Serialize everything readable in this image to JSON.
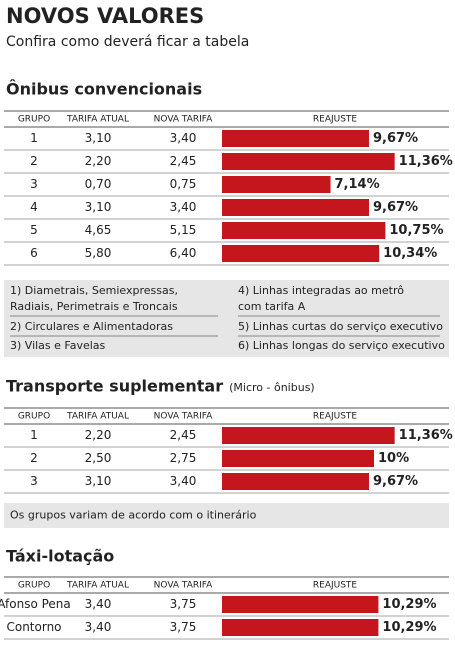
{
  "header": {
    "title": "NOVOS VALORES",
    "subtitle": "Confira como deverá ficar a tabela"
  },
  "sections": [
    {
      "title": "Ônibus convencionais",
      "columns": [
        "GRUPO",
        "TARIFA ATUAL",
        "NOVA TARIFA",
        "REAJUSTE"
      ],
      "rows": [
        [
          "1",
          "3,10",
          "3,40"
        ],
        [
          "2",
          "2,20",
          "2,45"
        ],
        [
          "3",
          "0,70",
          "0,75"
        ],
        [
          "4",
          "3,10",
          "3,40"
        ],
        [
          "5",
          "4,65",
          "5,15"
        ],
        [
          "6",
          "5,80",
          "6,40"
        ]
      ],
      "values": [
        9.67,
        11.36,
        7.14,
        9.67,
        10.75,
        10.34
      ],
      "value_labels": [
        "9,67%",
        "11,36%",
        "7,14%",
        "9,67%",
        "10,75%",
        "10,34%"
      ],
      "notes": [
        [
          "1) Diametrais, Semiexpressas,",
          "Radiais, Perimetrais e Troncais"
        ],
        [
          "2) Circulares e Alimentadoras"
        ],
        [
          "3) Vilas e Favelas"
        ],
        [
          "4) Linhas integradas ao metrô",
          "com tarifa A"
        ],
        [
          "5) Linhas curtas do serviço executivo"
        ],
        [
          "6) Linhas longas do serviço executivo"
        ]
      ]
    },
    {
      "title": "Transporte suplementar",
      "title_note": "(Micro - ônibus)",
      "columns": [
        "GRUPO",
        "TARIFA ATUAL",
        "NOVA TARIFA",
        "REAJUSTE"
      ],
      "rows": [
        [
          "1",
          "2,20",
          "2,45"
        ],
        [
          "2",
          "2,50",
          "2,75"
        ],
        [
          "3",
          "3,10",
          "3,40"
        ]
      ],
      "values": [
        11.36,
        10,
        9.67
      ],
      "value_labels": [
        "11,36%",
        "10%",
        "9,67%"
      ],
      "notes": [
        [
          "Os grupos variam de acordo com o itinerário"
        ]
      ]
    },
    {
      "title": "Táxi-lotação",
      "columns": [
        "GRUPO",
        "TARIFA ATUAL",
        "NOVA TARIFA",
        "REAJUSTE"
      ],
      "rows": [
        [
          "Afonso Pena",
          "3,40",
          "3,75"
        ],
        [
          "Contorno",
          "3,40",
          "3,75"
        ]
      ],
      "values": [
        10.29,
        10.29
      ],
      "value_labels": [
        "10,29%",
        "10,29%"
      ]
    }
  ]
}
